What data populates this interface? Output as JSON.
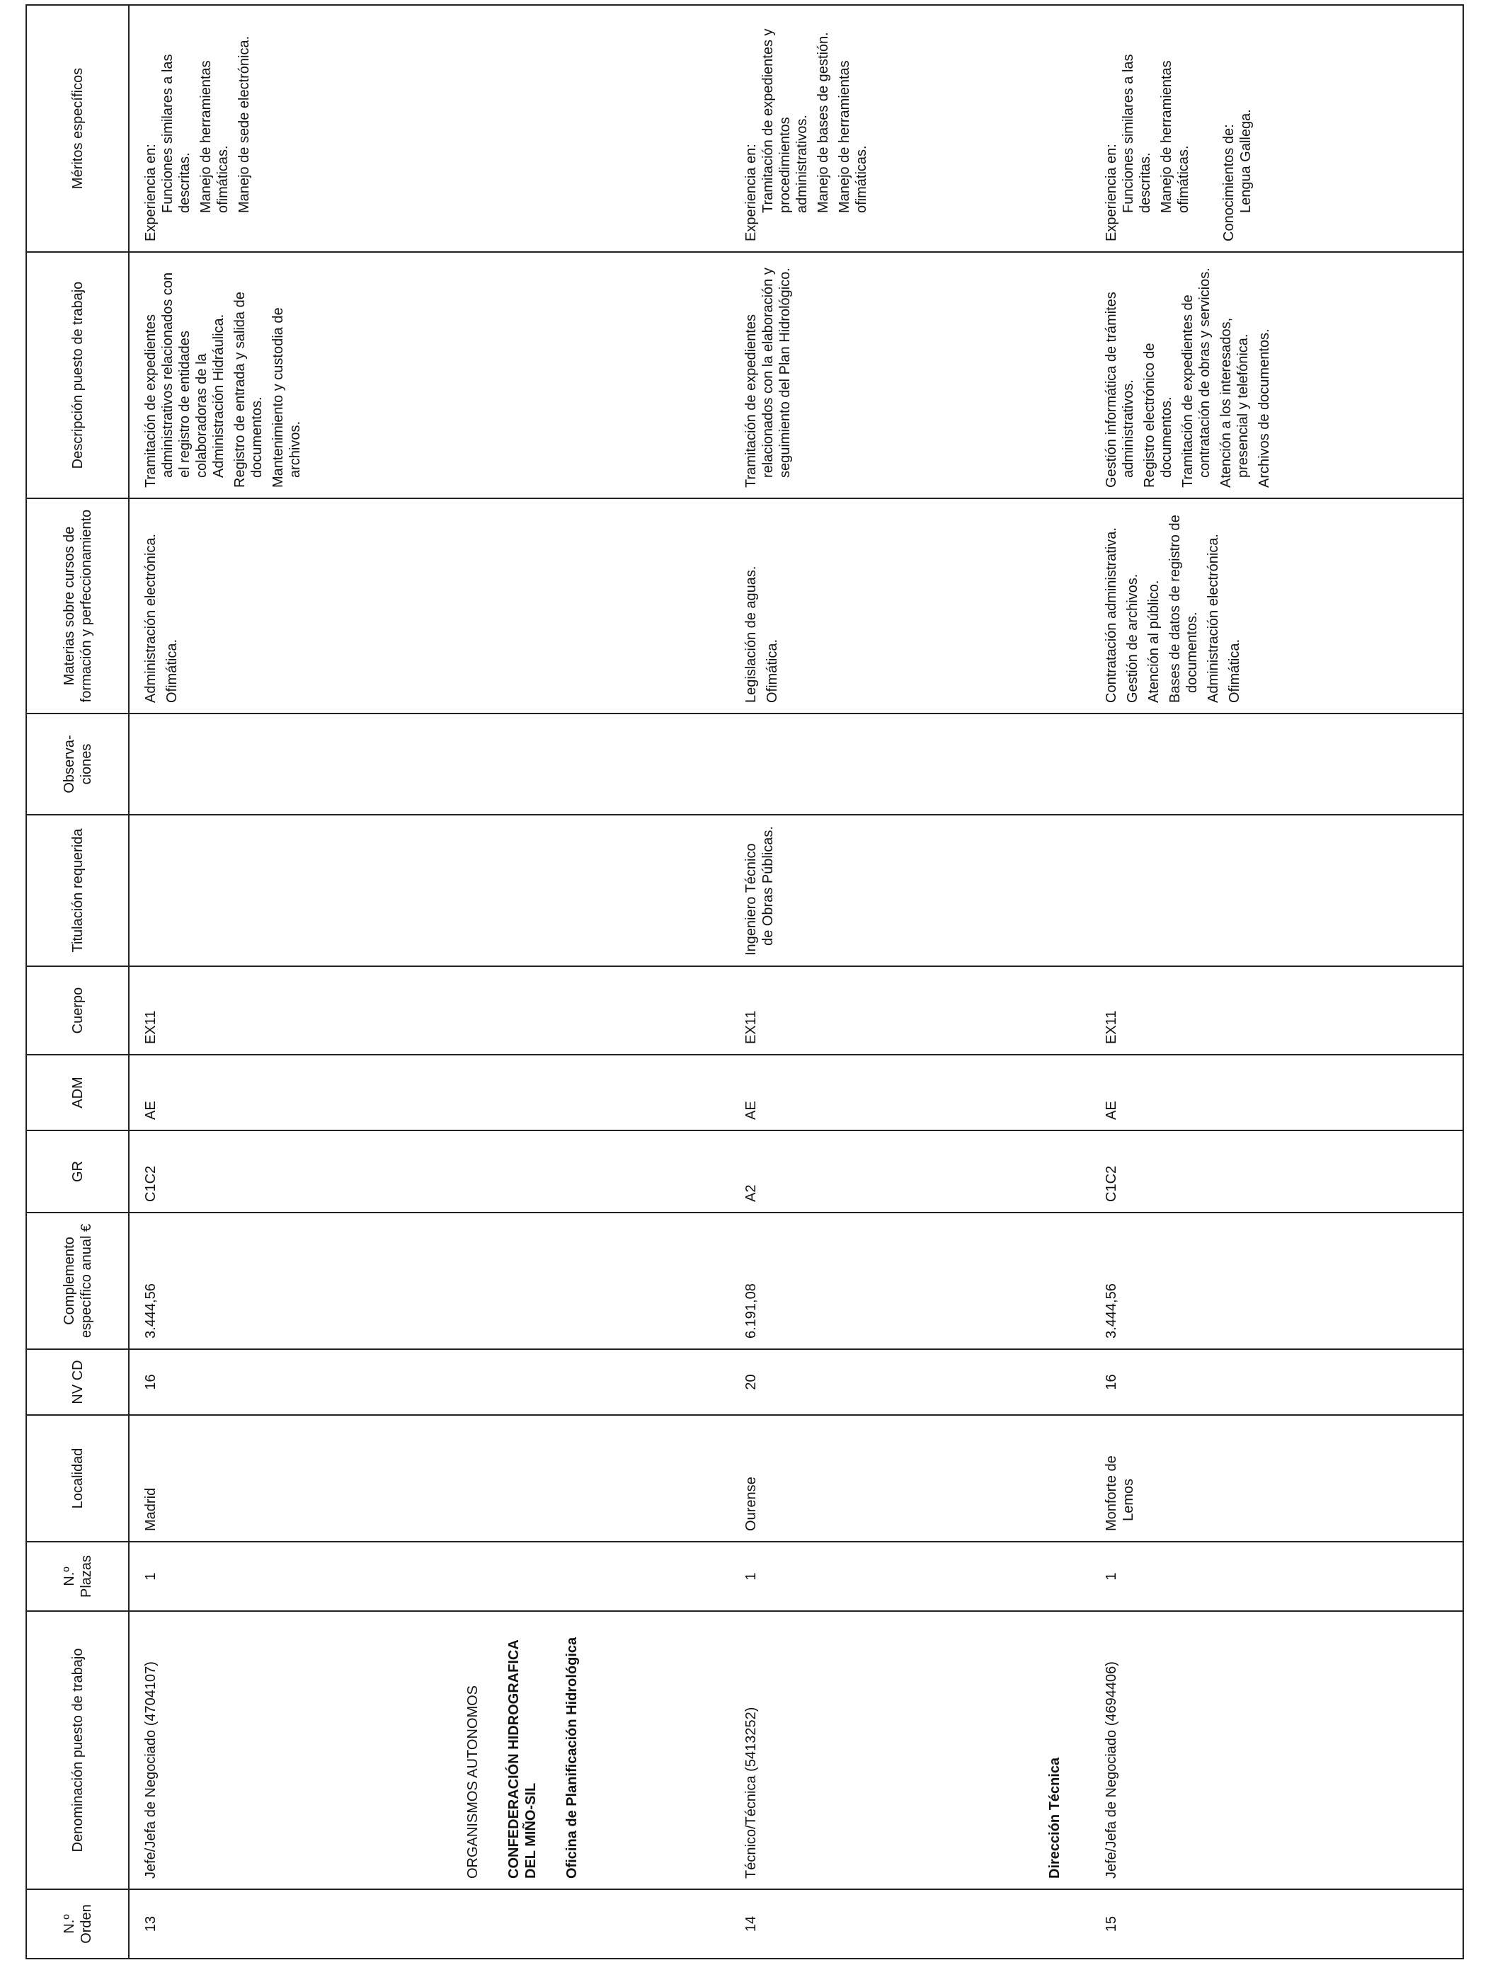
{
  "header": {
    "columns": [
      "N.º Orden",
      "Denominación puesto de trabajo",
      "N.º Plazas",
      "Localidad",
      "NV CD",
      "Complemento específico anual €",
      "GR",
      "ADM",
      "Cuerpo",
      "Titulación requerida",
      "Observa-ciones",
      "Materias sobre cursos de formación y perfeccionamiento",
      "Descripción puesto de trabajo",
      "Méritos específicos"
    ]
  },
  "rows": [
    {
      "cells": [
        [
          "13"
        ],
        [
          "Jefe/Jefa de Negociado (4704107)"
        ],
        [
          "1"
        ],
        [
          "Madrid"
        ],
        [
          "16"
        ],
        [
          "3.444,56"
        ],
        [
          "C1C2"
        ],
        [
          "AE"
        ],
        [
          "EX11"
        ],
        [],
        [],
        [
          "Administración electrónica.",
          "Ofimática."
        ],
        [
          "Tramitación de expedientes administrativos relacionados con el registro de entidades colaboradoras de la Administración Hidráulica.",
          "Registro de entrada y salida de documentos.",
          "Mantenimiento y custodia de archivos."
        ],
        [
          {
            "heading": "Experiencia en:",
            "items": [
              "Funciones similares a las descritas.",
              "Manejo de herramientas ofimáticas.",
              "Manejo de sede electrónica."
            ]
          }
        ]
      ]
    },
    {
      "section": [
        {
          "text": "ORGANISMOS AUTONOMOS",
          "bold": false
        },
        {
          "text": "CONFEDERACIÓN HIDROGRAFICA DEL MIÑO-SIL",
          "bold": true
        },
        {
          "text": "Oficina de Planificación Hidrológica",
          "bold": true
        }
      ]
    },
    {
      "cells": [
        [
          "14"
        ],
        [
          "Técnico/Técnica (5413252)"
        ],
        [
          "1"
        ],
        [
          "Ourense"
        ],
        [
          "20"
        ],
        [
          "6.191,08"
        ],
        [
          "A2"
        ],
        [
          "AE"
        ],
        [
          "EX11"
        ],
        [
          "Ingeniero Técnico de Obras Públicas."
        ],
        [],
        [
          "Legislación de aguas.",
          "Ofimática."
        ],
        [
          "Tramitación de expedientes relacionados con la elaboración y seguimiento del Plan Hidrológico."
        ],
        [
          {
            "heading": "Experiencia en:",
            "items": [
              "Tramitación de expedientes y procedimientos administrativos.",
              "Manejo de bases de gestión.",
              "Manejo de herramientas ofimáticas."
            ]
          }
        ]
      ]
    },
    {
      "section": [
        {
          "text": "Dirección Técnica",
          "bold": true
        }
      ]
    },
    {
      "cells": [
        [
          "15"
        ],
        [
          "Jefe/Jefa de Negociado (4694406)"
        ],
        [
          "1"
        ],
        [
          "Monforte de Lemos"
        ],
        [
          "16"
        ],
        [
          "3.444,56"
        ],
        [
          "C1C2"
        ],
        [
          "AE"
        ],
        [
          "EX11"
        ],
        [],
        [],
        [
          "Contratación administrativa.",
          "Gestión de archivos.",
          "Atención al público.",
          "Bases de datos de registro de documentos.",
          "Administración electrónica.",
          "Ofimática."
        ],
        [
          "Gestión informática de trámites administrativos.",
          "Registro electrónico de documentos.",
          "Tramitación de expedientes de contratación de obras y servicios.",
          "Atención a los interesados, presencial y telefónica.",
          "Archivos de documentos."
        ],
        [
          {
            "heading": "Experiencia en:",
            "items": [
              "Funciones similares a las descritas.",
              "Manejo de herramientas ofimáticas."
            ]
          },
          {
            "heading": "Conocimientos de:",
            "items": [
              "Lengua Gallega."
            ]
          }
        ]
      ]
    }
  ]
}
